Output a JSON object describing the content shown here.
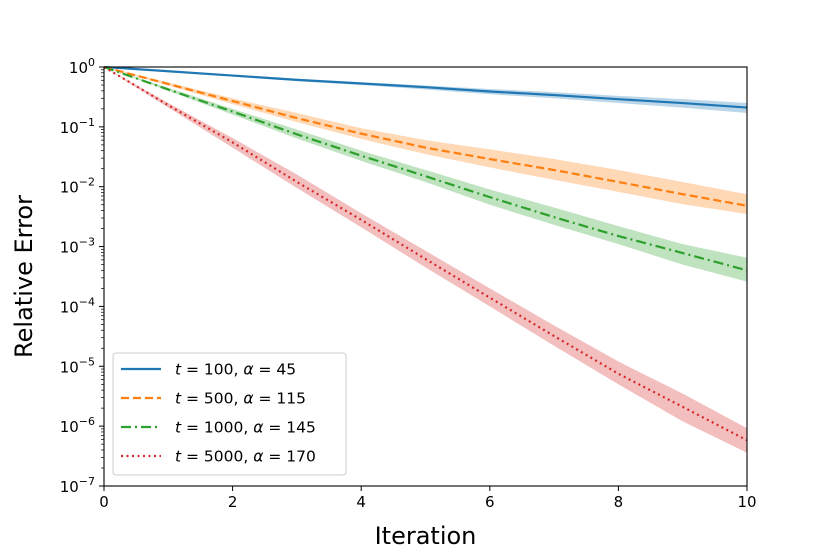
{
  "chart_data": {
    "type": "line",
    "title": "",
    "xlabel": "Iteration",
    "ylabel": "Relative Error",
    "xlim": [
      0,
      10
    ],
    "ylim": [
      1e-07,
      1
    ],
    "yscale": "log",
    "grid": false,
    "legend_position": "lower-left",
    "x_ticks": [
      {
        "value": 0,
        "label": "0"
      },
      {
        "value": 2,
        "label": "2"
      },
      {
        "value": 4,
        "label": "4"
      },
      {
        "value": 6,
        "label": "6"
      },
      {
        "value": 8,
        "label": "8"
      },
      {
        "value": 10,
        "label": "10"
      }
    ],
    "y_ticks": [
      {
        "value": 1,
        "base": "10",
        "exp": "0"
      },
      {
        "value": 0.1,
        "base": "10",
        "exp": "−1"
      },
      {
        "value": 0.01,
        "base": "10",
        "exp": "−2"
      },
      {
        "value": 0.001,
        "base": "10",
        "exp": "−3"
      },
      {
        "value": 0.0001,
        "base": "10",
        "exp": "−4"
      },
      {
        "value": 1e-05,
        "base": "10",
        "exp": "−5"
      },
      {
        "value": 1e-06,
        "base": "10",
        "exp": "−6"
      },
      {
        "value": 1e-07,
        "base": "10",
        "exp": "−7"
      }
    ],
    "x": [
      0,
      1,
      2,
      3,
      4,
      5,
      6,
      7,
      8,
      9,
      10
    ],
    "series": [
      {
        "name": "t = 100, α = 45",
        "legend_parts": [
          "t",
          " = 100, ",
          "α",
          " = 45"
        ],
        "color": "#1f77b4",
        "style": "solid",
        "values": [
          1.0,
          0.85,
          0.72,
          0.61,
          0.53,
          0.46,
          0.39,
          0.34,
          0.29,
          0.25,
          0.21
        ],
        "band_low": [
          1.0,
          0.83,
          0.69,
          0.58,
          0.5,
          0.42,
          0.35,
          0.3,
          0.25,
          0.21,
          0.17
        ],
        "band_high": [
          1.0,
          0.87,
          0.75,
          0.64,
          0.56,
          0.49,
          0.43,
          0.38,
          0.33,
          0.29,
          0.25
        ]
      },
      {
        "name": "t = 500, α = 115",
        "legend_parts": [
          "t",
          " = 500, ",
          "α",
          " = 115"
        ],
        "color": "#ff7f0e",
        "style": "dashed",
        "values": [
          1.0,
          0.52,
          0.27,
          0.14,
          0.077,
          0.045,
          0.029,
          0.019,
          0.012,
          0.0075,
          0.0048
        ],
        "band_low": [
          1.0,
          0.49,
          0.24,
          0.12,
          0.063,
          0.035,
          0.021,
          0.013,
          0.0082,
          0.0051,
          0.0035
        ],
        "band_high": [
          1.0,
          0.55,
          0.3,
          0.17,
          0.095,
          0.06,
          0.042,
          0.029,
          0.019,
          0.012,
          0.0075
        ]
      },
      {
        "name": "t = 1000, α = 145",
        "legend_parts": [
          "t",
          " = 1000, ",
          "α",
          " = 145"
        ],
        "color": "#2ca02c",
        "style": "dashdot",
        "values": [
          1.0,
          0.42,
          0.18,
          0.075,
          0.033,
          0.015,
          0.0067,
          0.0031,
          0.0015,
          0.00078,
          0.0004
        ],
        "band_low": [
          1.0,
          0.4,
          0.16,
          0.064,
          0.027,
          0.012,
          0.005,
          0.0023,
          0.0011,
          0.0005,
          0.00026
        ],
        "band_high": [
          1.0,
          0.45,
          0.2,
          0.09,
          0.04,
          0.019,
          0.009,
          0.0045,
          0.0022,
          0.0011,
          0.00065
        ]
      },
      {
        "name": "t = 5000, α = 170",
        "legend_parts": [
          "t",
          " = 5000, ",
          "α",
          " = 170"
        ],
        "color": "#d62728",
        "style": "dotted",
        "values": [
          1.0,
          0.23,
          0.055,
          0.012,
          0.0028,
          0.00062,
          0.00014,
          3.2e-05,
          7.5e-06,
          2.1e-06,
          5.8e-07
        ],
        "band_low": [
          1.0,
          0.21,
          0.045,
          0.0095,
          0.0021,
          0.00045,
          0.0001,
          2.2e-05,
          5e-06,
          1.2e-06,
          3.6e-07
        ],
        "band_high": [
          1.0,
          0.25,
          0.065,
          0.016,
          0.0036,
          0.00085,
          0.0002,
          4.8e-05,
          1.2e-05,
          3.5e-06,
          9.2e-07
        ]
      }
    ]
  }
}
